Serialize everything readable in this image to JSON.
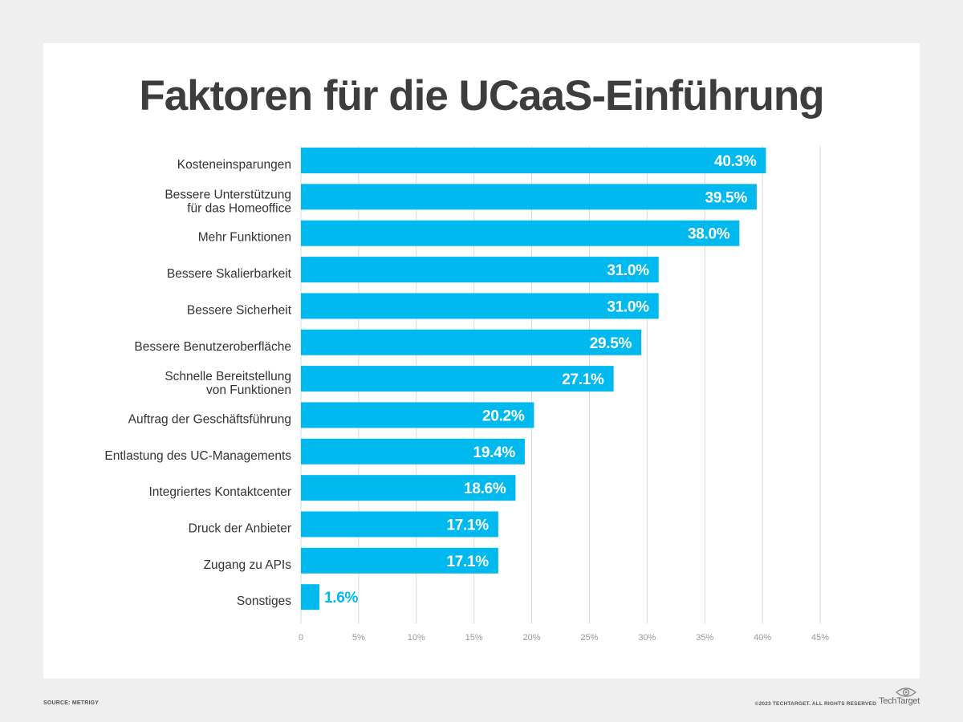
{
  "page": {
    "title": "Faktoren für die UCaaS-Einführung",
    "source": "SOURCE: METRIGY",
    "copyright": "©2023 TECHTARGET. ALL RIGHTS RESERVED",
    "brand": "TechTarget"
  },
  "colors": {
    "bar": "#00b9ef",
    "grid": "#d9d9d9",
    "bar_label": "#ffffff",
    "category_label": "#333333",
    "tick_label": "#9a9a9a"
  },
  "chart_data": {
    "type": "bar",
    "orientation": "horizontal",
    "title": "Faktoren für die UCaaS-Einführung",
    "categories": [
      [
        "Kosteneinsparungen"
      ],
      [
        "Bessere Unterstützung",
        "für das Homeoffice"
      ],
      [
        "Mehr Funktionen"
      ],
      [
        "Bessere Skalierbarkeit"
      ],
      [
        "Bessere Sicherheit"
      ],
      [
        "Bessere Benutzeroberfläche"
      ],
      [
        "Schnelle Bereitstellung",
        "von Funktionen"
      ],
      [
        "Auftrag der Geschäftsführung"
      ],
      [
        "Entlastung des UC-Managements"
      ],
      [
        "Integriertes Kontaktcenter"
      ],
      [
        "Druck der Anbieter"
      ],
      [
        "Zugang zu APIs"
      ],
      [
        "Sonstiges"
      ]
    ],
    "values": [
      40.3,
      39.5,
      38.0,
      31.0,
      31.0,
      29.5,
      27.1,
      20.2,
      19.4,
      18.6,
      17.1,
      17.1,
      1.6
    ],
    "value_labels": [
      "40.3%",
      "39.5%",
      "38.0%",
      "31.0%",
      "31.0%",
      "29.5%",
      "27.1%",
      "20.2%",
      "19.4%",
      "18.6%",
      "17.1%",
      "17.1%",
      "1.6%"
    ],
    "xlim": [
      0,
      45
    ],
    "xticks": [
      0,
      5,
      10,
      15,
      20,
      25,
      30,
      35,
      40,
      45
    ],
    "xtick_labels": [
      "0",
      "5%",
      "10%",
      "15%",
      "20%",
      "25%",
      "30%",
      "35%",
      "40%",
      "45%"
    ],
    "grid": true,
    "legend": "none"
  }
}
